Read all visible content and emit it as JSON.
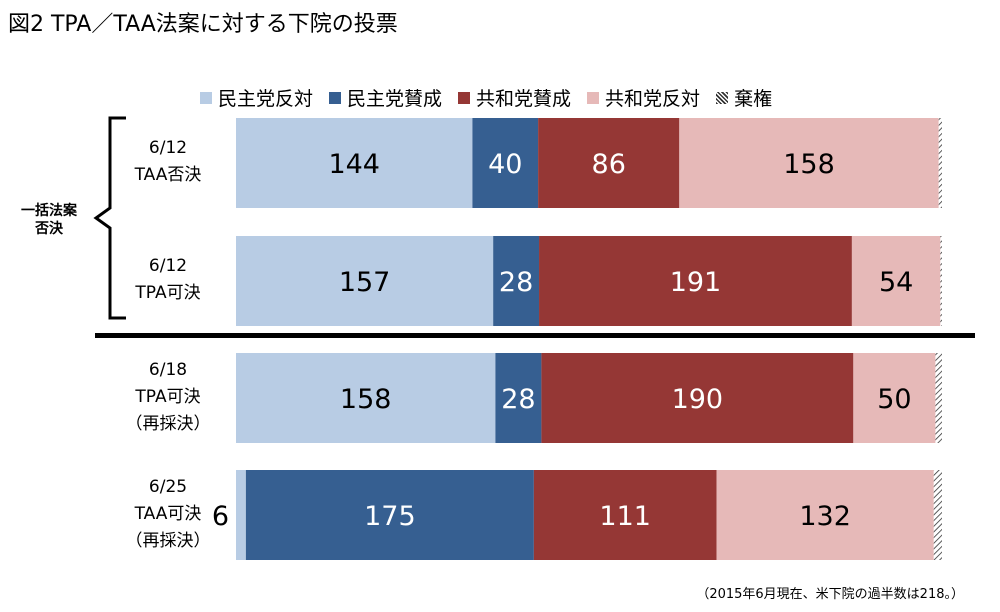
{
  "title": "図2 TPA／TAA法案に対する下院の投票",
  "note": "（2015年6月現在、米下院の過半数は218。）",
  "chart_data": {
    "type": "bar",
    "orientation": "horizontal",
    "stacked": true,
    "legend_placement": "top",
    "series": [
      {
        "name": "民主党反対",
        "color": "#b8cce4"
      },
      {
        "name": "民主党賛成",
        "color": "#365f91"
      },
      {
        "name": "共和党賛成",
        "color": "#953735"
      },
      {
        "name": "共和党反対",
        "color": "#e6b9b8"
      },
      {
        "name": "棄権",
        "color": "hatch"
      }
    ],
    "group_label": "一括法案\n否決",
    "rows": [
      {
        "label": [
          "6/12",
          "TAA否決"
        ],
        "values": [
          144,
          40,
          86,
          158,
          2
        ]
      },
      {
        "label": [
          "6/12",
          "TPA可決"
        ],
        "values": [
          157,
          28,
          191,
          54,
          1
        ]
      },
      {
        "label": [
          "6/18",
          "TPA可決",
          "（再採決）"
        ],
        "values": [
          158,
          28,
          190,
          50,
          4
        ]
      },
      {
        "label": [
          "6/25",
          "TAA可決",
          "（再採決）"
        ],
        "values": [
          6,
          175,
          111,
          132,
          5
        ]
      }
    ]
  }
}
